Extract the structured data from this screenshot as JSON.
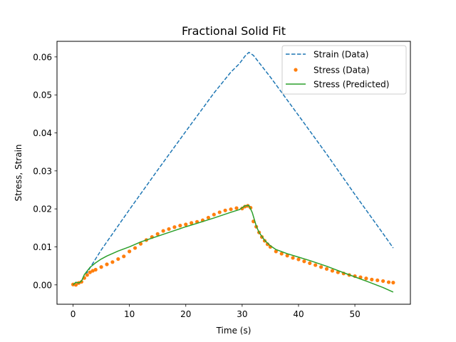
{
  "chart_data": {
    "type": "line",
    "title": "Fractional Solid Fit",
    "xlabel": "Time (s)",
    "ylabel": "Stress, Strain",
    "xlim": [
      -2.85,
      59.85
    ],
    "ylim": [
      -0.0051,
      0.0641
    ],
    "xticks": [
      0,
      10,
      20,
      30,
      40,
      50
    ],
    "xtick_labels": [
      "0",
      "10",
      "20",
      "30",
      "40",
      "50"
    ],
    "yticks": [
      0.0,
      0.01,
      0.02,
      0.03,
      0.04,
      0.05,
      0.06
    ],
    "ytick_labels": [
      "0.00",
      "0.01",
      "0.02",
      "0.03",
      "0.04",
      "0.05",
      "0.06"
    ],
    "grid": false,
    "legend_position": "upper right",
    "series": [
      {
        "name": "Strain (Data)",
        "style": "dashed",
        "color": "#1f77b4",
        "x": [
          0.0,
          1.5,
          5,
          10,
          15,
          20,
          25,
          28,
          29.5,
          30.5,
          31.2,
          32,
          35,
          40,
          45,
          50,
          55,
          56.8
        ],
        "y": [
          0.0,
          0.0009,
          0.0092,
          0.0198,
          0.0302,
          0.0404,
          0.0505,
          0.056,
          0.0582,
          0.0602,
          0.0612,
          0.0604,
          0.0547,
          0.0446,
          0.0344,
          0.0238,
          0.0135,
          0.0097
        ]
      },
      {
        "name": "Stress (Data)",
        "style": "markers",
        "color": "#ff7f0e",
        "x": [
          0.0,
          0.5,
          1,
          1.5,
          2,
          2.5,
          3,
          3.5,
          4,
          5,
          6,
          7,
          8,
          9,
          10,
          11,
          12,
          13,
          14,
          15,
          16,
          17,
          18,
          19,
          20,
          21,
          22,
          23,
          24,
          25,
          26,
          27,
          28,
          29,
          30,
          30.5,
          31,
          31.5,
          32,
          32.5,
          33,
          33.5,
          34,
          34.5,
          35,
          36,
          37,
          38,
          39,
          40,
          41,
          42,
          43,
          44,
          45,
          46,
          47,
          48,
          49,
          50,
          51,
          52,
          53,
          54,
          55,
          56,
          56.8
        ],
        "y": [
          0.0001,
          0.0,
          0.0005,
          0.0008,
          0.0018,
          0.0026,
          0.0033,
          0.0037,
          0.004,
          0.0047,
          0.0054,
          0.006,
          0.0068,
          0.0075,
          0.0088,
          0.0097,
          0.0108,
          0.0118,
          0.0126,
          0.0134,
          0.0142,
          0.0147,
          0.0152,
          0.0156,
          0.0159,
          0.0163,
          0.0166,
          0.017,
          0.0177,
          0.0185,
          0.0191,
          0.0196,
          0.0199,
          0.0202,
          0.0201,
          0.0206,
          0.0208,
          0.0203,
          0.0167,
          0.0153,
          0.0138,
          0.0126,
          0.0116,
          0.0107,
          0.01,
          0.0088,
          0.0082,
          0.0077,
          0.0071,
          0.0067,
          0.0062,
          0.0057,
          0.0052,
          0.0047,
          0.0042,
          0.0037,
          0.0033,
          0.003,
          0.0026,
          0.0023,
          0.002,
          0.0017,
          0.0014,
          0.0012,
          0.001,
          0.0007,
          0.0006
        ]
      },
      {
        "name": "Stress (Predicted)",
        "style": "solid",
        "color": "#2ca02c",
        "x": [
          0.0,
          0.5,
          1,
          1.5,
          2,
          3,
          4,
          5,
          6,
          8,
          10,
          12,
          15,
          18,
          20,
          22,
          25,
          28,
          29.5,
          30.5,
          31.2,
          31.8,
          32.5,
          33,
          34,
          35,
          36,
          38,
          40,
          42,
          45,
          48,
          50,
          52,
          55,
          56.8
        ],
        "y": [
          0.0,
          0.0007,
          0.0005,
          0.001,
          0.0027,
          0.0046,
          0.0058,
          0.0068,
          0.0076,
          0.0089,
          0.01,
          0.0113,
          0.0128,
          0.0143,
          0.0153,
          0.0162,
          0.0176,
          0.0191,
          0.0198,
          0.0208,
          0.0209,
          0.019,
          0.0155,
          0.0138,
          0.0117,
          0.0103,
          0.0093,
          0.0082,
          0.0073,
          0.0064,
          0.0049,
          0.0032,
          0.0021,
          0.001,
          -0.0007,
          -0.0019
        ]
      }
    ]
  }
}
